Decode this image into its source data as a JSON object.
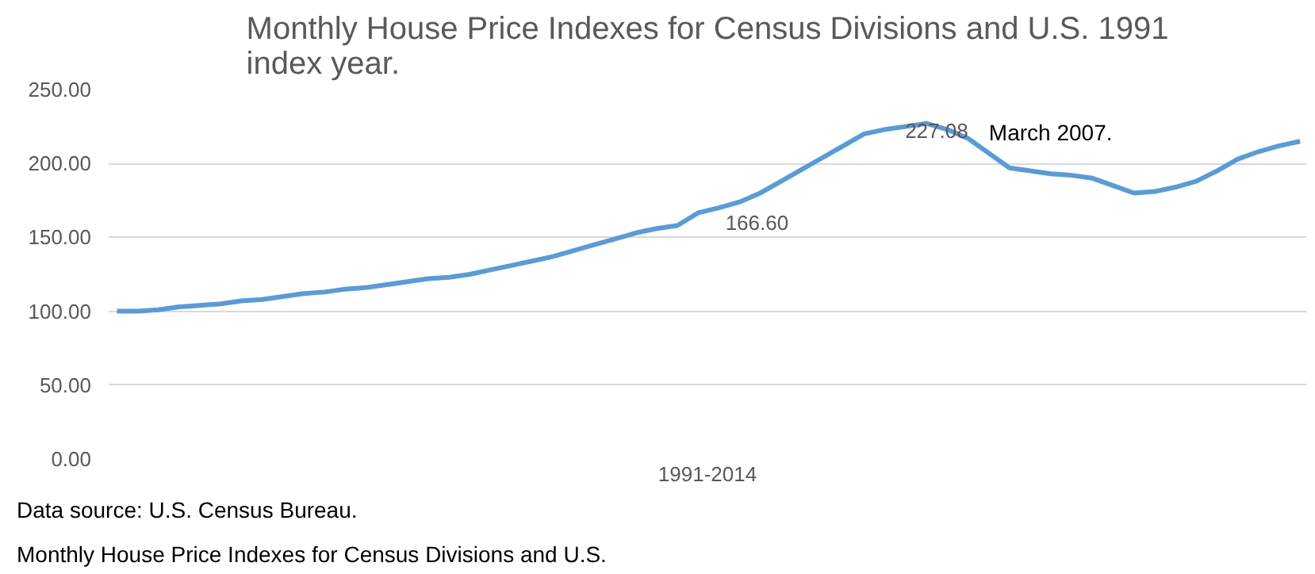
{
  "chart_data": {
    "type": "line",
    "title": "Monthly House Price Indexes for Census Divisions and U.S. 1991 index year.",
    "xlabel": "1991-2014",
    "categories": [
      null,
      null,
      null,
      null,
      null,
      null,
      null,
      null,
      null,
      null,
      null,
      null,
      null,
      null,
      null,
      null,
      null,
      null,
      null,
      null,
      null,
      null,
      null,
      null,
      null,
      null,
      null,
      null,
      null,
      null,
      null,
      null,
      null,
      null,
      null,
      null,
      null,
      null,
      null,
      null,
      null,
      null,
      null,
      null,
      null,
      null,
      null,
      null,
      null,
      null,
      null,
      null,
      null,
      null,
      null,
      null,
      null,
      null
    ],
    "series": [
      {
        "color": "#5b9bd5",
        "values": [
          100,
          100,
          101,
          103,
          104,
          105,
          107,
          108,
          110,
          112,
          113,
          115,
          116,
          118,
          120,
          122,
          123,
          125,
          128,
          131,
          134,
          137,
          141,
          145,
          149,
          153,
          156,
          158,
          166.6,
          170,
          174,
          180,
          188,
          196,
          204,
          212,
          220,
          223,
          225,
          227.08,
          223,
          217,
          207,
          197,
          195,
          193,
          192,
          190,
          185,
          180,
          181,
          184,
          188,
          195,
          203,
          208,
          212,
          215
        ]
      }
    ],
    "ylim": [
      0,
      250
    ],
    "yticks": [
      {
        "value": 0,
        "label": "0.00"
      },
      {
        "value": 50,
        "label": "50.00"
      },
      {
        "value": 100,
        "label": "100.00"
      },
      {
        "value": 150,
        "label": "150.00"
      },
      {
        "value": 200,
        "label": "200.00"
      },
      {
        "value": 250,
        "label": "250.00"
      }
    ],
    "grid": "y",
    "marker": "none",
    "line_style": "solid",
    "annotations": [
      "166.60",
      "227.08",
      "March 2007.",
      "Data source: U.S. Census Bureau.",
      "Monthly House Price Indexes for Census Divisions and U.S."
    ]
  }
}
